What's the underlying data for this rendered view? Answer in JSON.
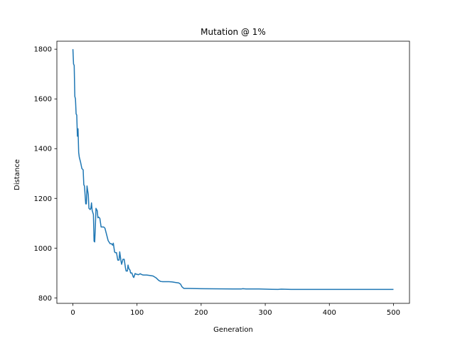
{
  "chart_data": {
    "type": "line",
    "title": "Mutation @ 1%",
    "xlabel": "Generation",
    "ylabel": "Distance",
    "xlim": [
      -25,
      525
    ],
    "ylim": [
      778,
      1832
    ],
    "xticks": [
      0,
      100,
      200,
      300,
      400,
      500
    ],
    "yticks": [
      800,
      1000,
      1200,
      1400,
      1600,
      1800
    ],
    "grid": false,
    "legend": "none",
    "series_color": "#1f77b4",
    "series": [
      {
        "x": [
          0,
          1,
          2,
          3,
          4,
          5,
          6,
          7,
          8,
          9,
          10,
          11,
          12,
          14,
          16,
          17,
          18,
          20,
          21,
          22,
          23,
          24,
          25,
          27,
          28,
          29,
          30,
          32,
          33,
          34,
          35,
          36,
          37,
          38,
          39,
          40,
          42,
          44,
          46,
          48,
          50,
          55,
          58,
          60,
          62,
          63,
          65,
          66,
          68,
          70,
          72,
          73,
          75,
          76,
          78,
          80,
          82,
          83,
          85,
          86,
          87,
          88,
          89,
          90,
          92,
          94,
          95,
          97,
          99,
          100,
          102,
          105,
          108,
          110,
          115,
          120,
          125,
          130,
          134,
          137,
          140,
          145,
          150,
          155,
          160,
          165,
          168,
          170,
          173,
          180,
          200,
          250,
          263,
          265,
          270,
          290,
          300,
          320,
          325,
          340,
          400,
          450,
          500
        ],
        "y": [
          1800,
          1740,
          1735,
          1610,
          1600,
          1540,
          1535,
          1450,
          1480,
          1385,
          1365,
          1355,
          1345,
          1320,
          1315,
          1255,
          1250,
          1178,
          1178,
          1250,
          1232,
          1215,
          1160,
          1155,
          1160,
          1182,
          1152,
          1135,
          1028,
          1025,
          1085,
          1160,
          1155,
          1150,
          1122,
          1125,
          1120,
          1085,
          1085,
          1085,
          1080,
          1030,
          1018,
          1018,
          1012,
          1020,
          985,
          982,
          982,
          952,
          952,
          985,
          948,
          935,
          955,
          955,
          920,
          908,
          908,
          932,
          920,
          915,
          912,
          900,
          900,
          885,
          882,
          898,
          895,
          895,
          893,
          897,
          893,
          892,
          892,
          890,
          888,
          880,
          870,
          866,
          865,
          865,
          865,
          864,
          862,
          860,
          855,
          845,
          838,
          838,
          837,
          836,
          836,
          837,
          836,
          836,
          835,
          834,
          835,
          834,
          834,
          834,
          834
        ]
      }
    ]
  }
}
